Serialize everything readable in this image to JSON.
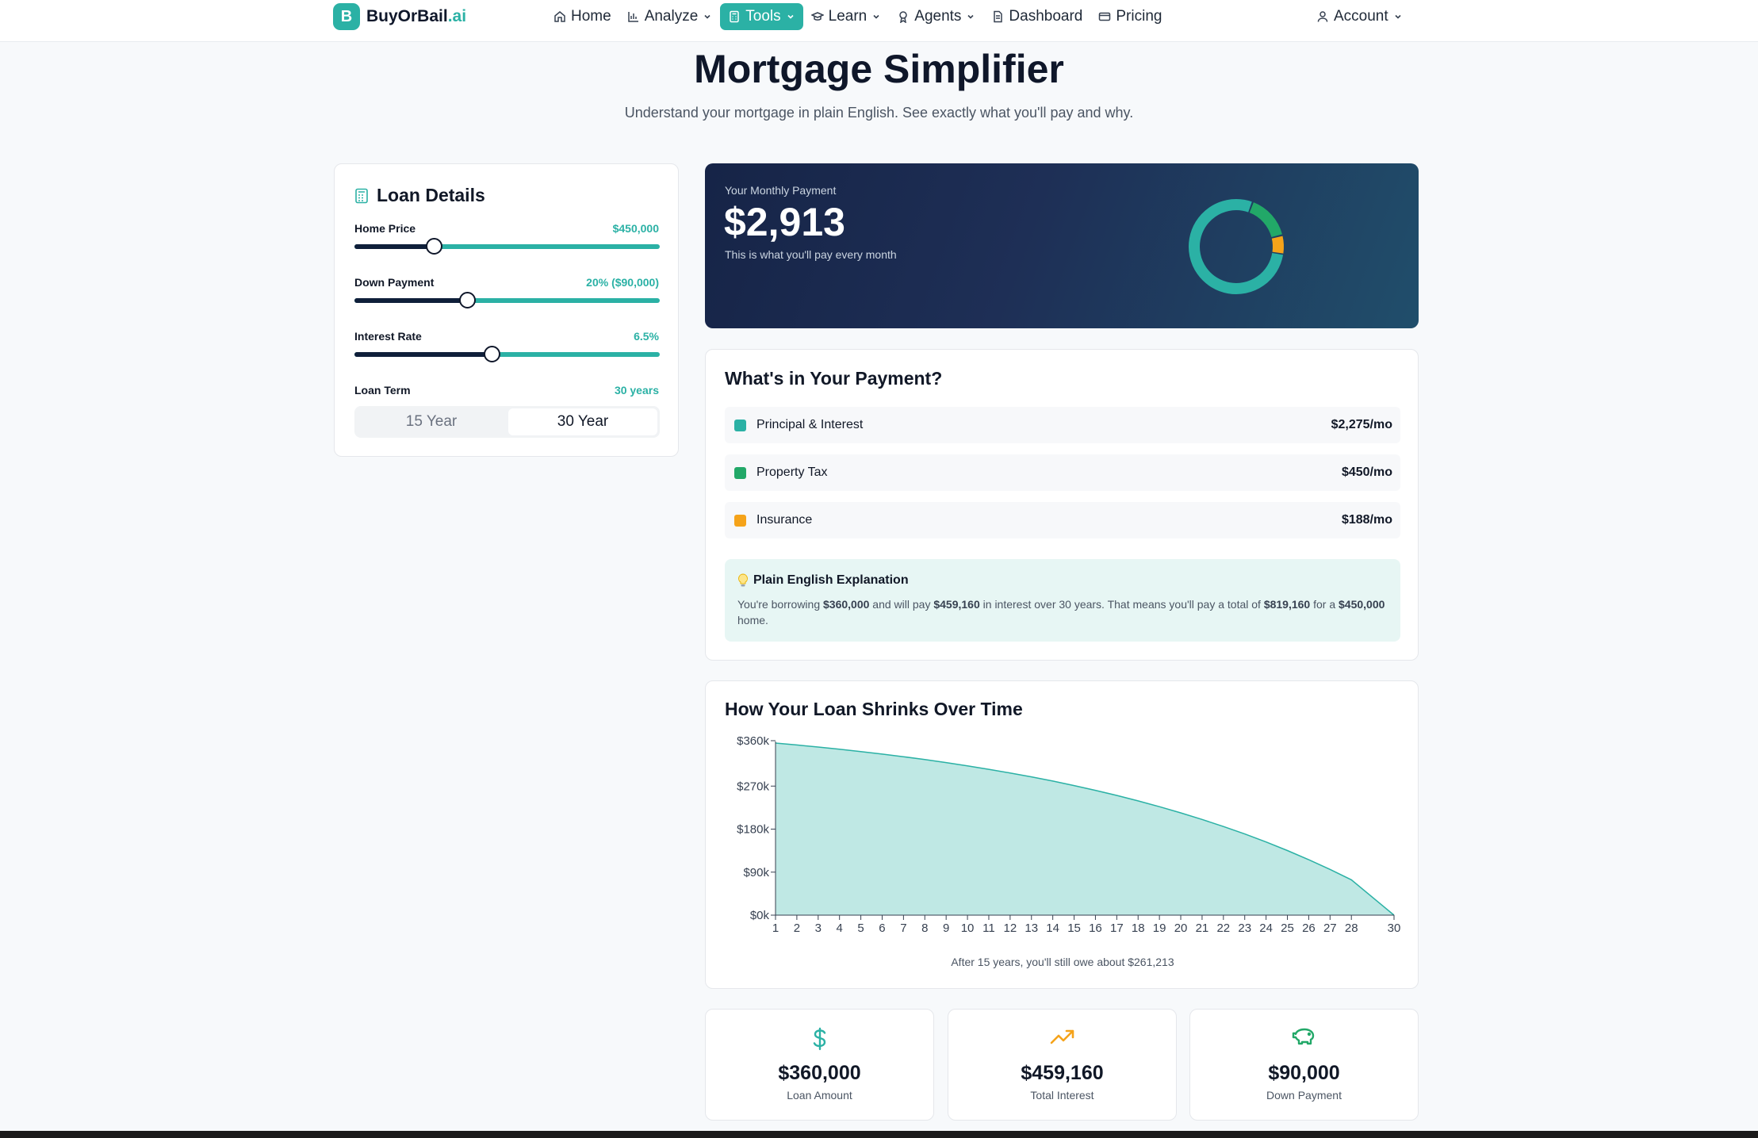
{
  "brand": {
    "name": "BuyOrBail",
    "suffix": ".ai",
    "mark": "B"
  },
  "nav": {
    "items": [
      {
        "label": "Home",
        "icon": "home-icon"
      },
      {
        "label": "Analyze",
        "icon": "bar-chart-icon"
      },
      {
        "label": "Tools",
        "icon": "calculator-icon"
      },
      {
        "label": "Learn",
        "icon": "graduation-cap-icon"
      },
      {
        "label": "Agents",
        "icon": "award-icon"
      },
      {
        "label": "Dashboard",
        "icon": "document-icon"
      },
      {
        "label": "Pricing",
        "icon": "credit-card-icon"
      }
    ],
    "account": "Account"
  },
  "page": {
    "title": "Mortgage Simplifier",
    "subtitle": "Understand your mortgage in plain English. See exactly what you'll pay and why."
  },
  "loan": {
    "title": "Loan Details",
    "home_price": {
      "label": "Home Price",
      "value": "$450,000",
      "position": 0.26
    },
    "down_payment": {
      "label": "Down Payment",
      "value": "20% ($90,000)",
      "position": 0.37
    },
    "interest_rate": {
      "label": "Interest Rate",
      "value": "6.5%",
      "position": 0.45
    },
    "loan_term": {
      "label": "Loan Term",
      "value": "30 years",
      "options": [
        "15 Year",
        "30 Year"
      ],
      "selected": "30 Year"
    }
  },
  "payment": {
    "label": "Your Monthly Payment",
    "amount": "$2,913",
    "note": "This is what you'll pay every month"
  },
  "breakdown": {
    "title": "What's in Your Payment?",
    "rows": [
      {
        "label": "Principal & Interest",
        "amount": "$2,275/mo",
        "color": "#2bb1a5",
        "value": 2275
      },
      {
        "label": "Property Tax",
        "amount": "$450/mo",
        "color": "#22a868",
        "value": 450
      },
      {
        "label": "Insurance",
        "amount": "$188/mo",
        "color": "#f5a31a",
        "value": 188
      }
    ],
    "explain": {
      "title": "Plain English Explanation",
      "t1": "You're borrowing ",
      "b1": "$360,000",
      "t2": " and will pay ",
      "b2": "$459,160",
      "t3": " in interest over 30 years. That means you'll pay a total of ",
      "b3": "$819,160",
      "t4": " for a ",
      "b4": "$450,000",
      "t5": " home."
    }
  },
  "chart_data": {
    "type": "area",
    "title": "How Your Loan Shrinks Over Time",
    "x": [
      1,
      2,
      3,
      4,
      5,
      6,
      7,
      8,
      9,
      10,
      11,
      12,
      13,
      14,
      15,
      16,
      17,
      18,
      19,
      20,
      21,
      22,
      23,
      24,
      25,
      26,
      27,
      28,
      30
    ],
    "x_tick_labels": [
      "1",
      "2",
      "3",
      "4",
      "5",
      "6",
      "7",
      "8",
      "9",
      "10",
      "11",
      "12",
      "13",
      "14",
      "15",
      "16",
      "17",
      "18",
      "19",
      "20",
      "21",
      "22",
      "23",
      "24",
      "25",
      "26",
      "27",
      "28",
      "30"
    ],
    "y_tick_labels": [
      "$0k",
      "$90k",
      "$180k",
      "$270k",
      "$360k"
    ],
    "ylim": [
      0,
      360000
    ],
    "series": [
      {
        "values": [
          360000,
          355975,
          351680,
          347097,
          342207,
          336989,
          331422,
          325482,
          319144,
          312381,
          305165,
          297465,
          289249,
          280483,
          271129,
          261150,
          250501,
          239139,
          227016,
          214080,
          200278,
          185551,
          169837,
          153070,
          135181,
          116093,
          95726,
          73994,
          0
        ]
      }
    ],
    "color": "#2bb1a5",
    "note": "After 15 years, you'll still owe about $261,213"
  },
  "stats": [
    {
      "value": "$360,000",
      "caption": "Loan Amount",
      "icon": "dollar-icon",
      "color": "#2bb1a5"
    },
    {
      "value": "$459,160",
      "caption": "Total Interest",
      "icon": "trending-up-icon",
      "color": "#f5a31a"
    },
    {
      "value": "$90,000",
      "caption": "Down Payment",
      "icon": "piggy-bank-icon",
      "color": "#22a868"
    }
  ]
}
